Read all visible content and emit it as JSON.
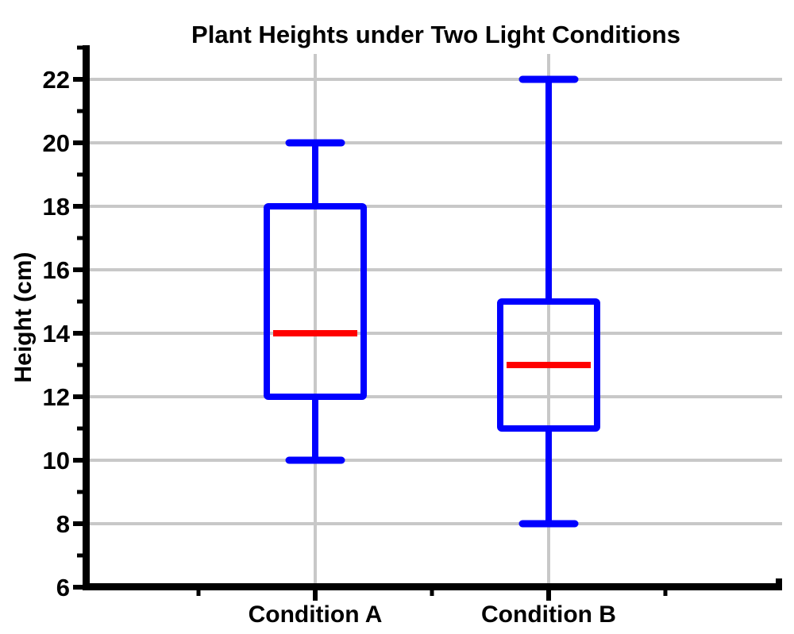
{
  "title": "Plant Heights under Two Light Conditions",
  "chart_data": {
    "type": "box",
    "title": "Plant Heights under Two Light Conditions",
    "ylabel": "Height (cm)",
    "xlabel": "",
    "categories": [
      "Condition A",
      "Condition B"
    ],
    "series": [
      {
        "name": "Condition A",
        "whisker_low": 10,
        "q1": 12,
        "median": 14,
        "q3": 18,
        "whisker_high": 20
      },
      {
        "name": "Condition B",
        "whisker_low": 8,
        "q1": 11,
        "median": 13,
        "q3": 15,
        "whisker_high": 22
      }
    ],
    "ylim": [
      6,
      23.2
    ],
    "yticks_major": [
      6,
      8,
      10,
      12,
      14,
      16,
      18,
      20,
      22
    ],
    "yticks_minor": [
      7,
      9,
      11,
      13,
      15,
      17,
      19,
      21,
      23
    ],
    "grid": "horizontal lines at major y ticks, vertical lines at category centers",
    "legend": "none",
    "colors": {
      "box_stroke": "#0000ff",
      "median": "#ff0000",
      "grid": "#c8c8c8",
      "axis": "#000000",
      "background": "#ffffff"
    }
  }
}
